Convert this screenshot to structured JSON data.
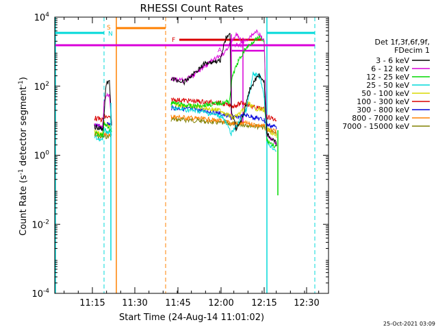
{
  "chart_data": {
    "type": "line",
    "title": "RHESSI Count Rates",
    "xlabel": "Start Time (24-Aug-14 11:01:02)",
    "ylabel_main": "Count Rate (s",
    "ylabel_sup1": "-1",
    "ylabel_mid": " detector segment",
    "ylabel_sup2": "-1",
    "ylabel_end": ")",
    "y_scale": "log",
    "ylim": [
      0.0001,
      10000
    ],
    "y_ticks": [
      {
        "value": 0.0001,
        "base": "10",
        "exp": "-4"
      },
      {
        "value": 0.01,
        "base": "10",
        "exp": "-2"
      },
      {
        "value": 1,
        "base": "10",
        "exp": "0"
      },
      {
        "value": 100,
        "base": "10",
        "exp": "2"
      },
      {
        "value": 10000,
        "base": "10",
        "exp": "4"
      }
    ],
    "x_ticks": [
      "11:15",
      "11:30",
      "11:45",
      "12:00",
      "12:15",
      "12:30"
    ],
    "legend": {
      "position": "right",
      "header": [
        "Det 1f,3f,6f,9f,",
        "FDecim 1"
      ],
      "entries": [
        {
          "label": "3 - 6 keV",
          "color": "#000000"
        },
        {
          "label": "6 - 12 keV",
          "color": "#d900d9"
        },
        {
          "label": "12 - 25 keV",
          "color": "#00d900"
        },
        {
          "label": "25 - 50 keV",
          "color": "#00d9d9"
        },
        {
          "label": "50 - 100 keV",
          "color": "#d9d900"
        },
        {
          "label": "100 - 300 keV",
          "color": "#d90000"
        },
        {
          "label": "300 - 800 keV",
          "color": "#0000d9"
        },
        {
          "label": "800 - 7000 keV",
          "color": "#ff8000"
        },
        {
          "label": "7000 - 15000 keV",
          "color": "#808000"
        }
      ]
    },
    "flags": {
      "saa_label": "S",
      "night_label": "N",
      "flare_label": "F",
      "attenuator_label_a": "A",
      "attenuator_label_ac": "AC"
    },
    "timestamp": "25-Oct-2021 03:09"
  }
}
